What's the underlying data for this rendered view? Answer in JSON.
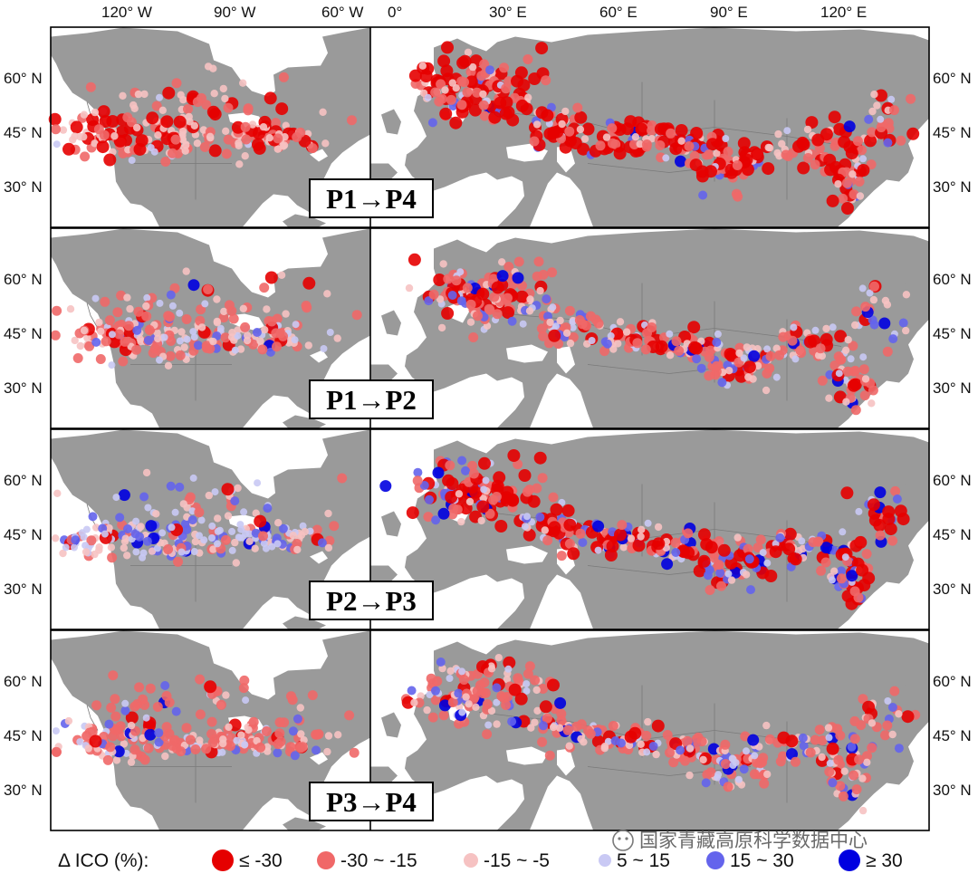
{
  "top_lon_labels": [
    "120° W",
    "90° W",
    "60° W",
    "0°",
    "30° E",
    "60° E",
    "90° E",
    "120° E"
  ],
  "lat_labels": [
    "60° N",
    "45° N",
    "30° N"
  ],
  "panels": [
    {
      "label": "P1→P4",
      "profile": "p14"
    },
    {
      "label": "P1→P2",
      "profile": "p12"
    },
    {
      "label": "P2→P3",
      "profile": "p23"
    },
    {
      "label": "P3→P4",
      "profile": "p34"
    }
  ],
  "legend": {
    "title": "Δ ICO (%):",
    "classes": [
      {
        "label": "≤ -30",
        "color": "#e50000"
      },
      {
        "label": "-30 ~ -15",
        "color": "#f06868"
      },
      {
        "label": "-15 ~ -5",
        "color": "#f6c2c2"
      },
      {
        "label": "5 ~ 15",
        "color": "#c9c9f4"
      },
      {
        "label": "15 ~ 30",
        "color": "#6464ec"
      },
      {
        "label": "≥ 30",
        "color": "#0000e0"
      }
    ]
  },
  "colors": {
    "land": "#9a9a9a",
    "water": "#ffffff",
    "border": "#7a7a7a"
  },
  "watermark": "国家青藏高原科学数据中心"
}
